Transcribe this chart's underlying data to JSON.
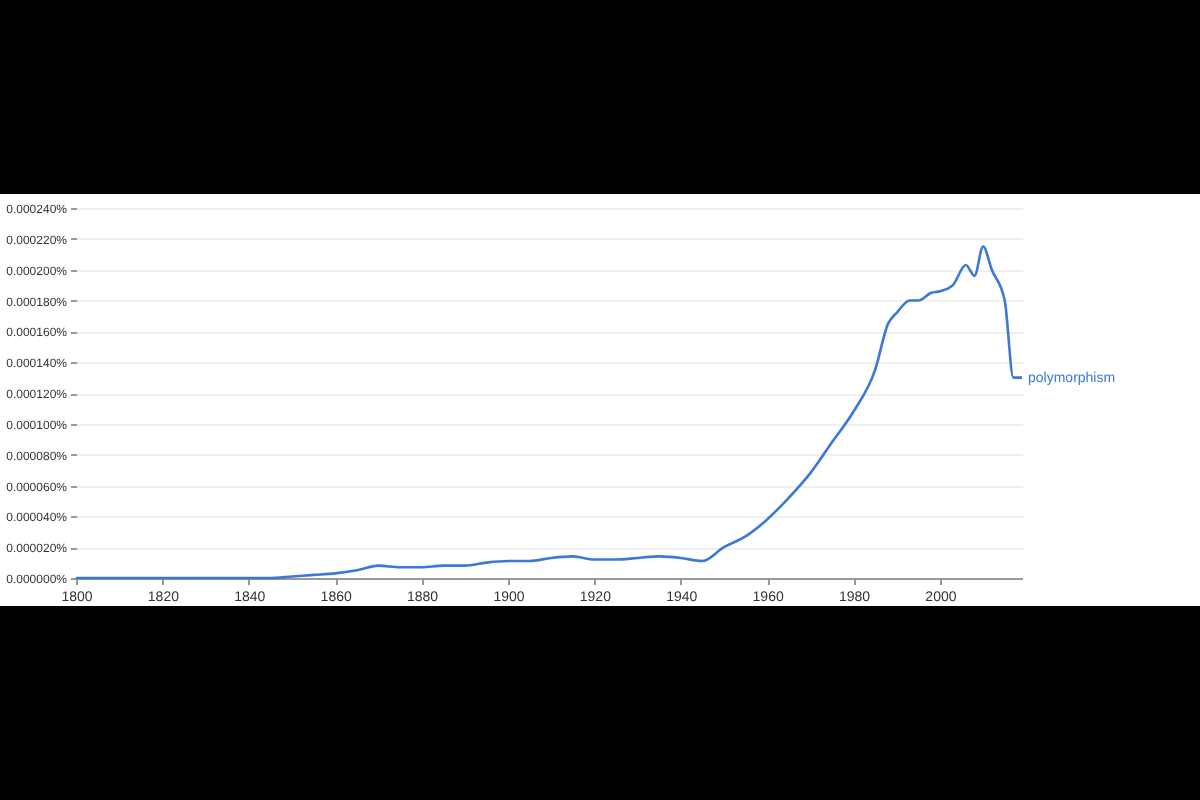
{
  "chart_data": {
    "type": "line",
    "x": [
      1800,
      1810,
      1820,
      1830,
      1840,
      1845,
      1850,
      1855,
      1860,
      1865,
      1870,
      1875,
      1880,
      1885,
      1890,
      1895,
      1900,
      1905,
      1910,
      1915,
      1920,
      1925,
      1930,
      1935,
      1940,
      1945,
      1950,
      1955,
      1960,
      1965,
      1970,
      1975,
      1980,
      1985,
      1988,
      1990,
      1993,
      1995,
      1998,
      2000,
      2003,
      2006,
      2008,
      2010,
      2012,
      2015,
      2017,
      2019
    ],
    "series": [
      {
        "name": "polymorphism",
        "color": "#3b78d8",
        "values": [
          0,
          0,
          0,
          0,
          0,
          0,
          1e-06,
          2e-06,
          3e-06,
          5e-06,
          8e-06,
          7e-06,
          7e-06,
          8e-06,
          8e-06,
          1e-05,
          1.1e-05,
          1.1e-05,
          1.3e-05,
          1.4e-05,
          1.2e-05,
          1.2e-05,
          1.3e-05,
          1.4e-05,
          1.3e-05,
          1.1e-05,
          2e-05,
          2.7e-05,
          3.8e-05,
          5.2e-05,
          6.8e-05,
          8.8e-05,
          0.000108,
          0.000135,
          0.000165,
          0.000172,
          0.00018,
          0.00018,
          0.000185,
          0.000186,
          0.00019,
          0.000203,
          0.000196,
          0.000215,
          0.0002,
          0.00018,
          0.00013,
          0.00013
        ]
      }
    ],
    "xlim": [
      1800,
      2019
    ],
    "xticks": [
      1800,
      1820,
      1840,
      1860,
      1880,
      1900,
      1920,
      1940,
      1960,
      1980,
      2000
    ],
    "ylim": [
      0,
      0.00024
    ],
    "yticks": [
      {
        "value": 0,
        "label": "0.000000%"
      },
      {
        "value": 2e-05,
        "label": "0.000020%"
      },
      {
        "value": 4e-05,
        "label": "0.000040%"
      },
      {
        "value": 6e-05,
        "label": "0.000060%"
      },
      {
        "value": 8e-05,
        "label": "0.000080%"
      },
      {
        "value": 0.0001,
        "label": "0.000100%"
      },
      {
        "value": 0.00012,
        "label": "0.000120%"
      },
      {
        "value": 0.00014,
        "label": "0.000140%"
      },
      {
        "value": 0.00016,
        "label": "0.000160%"
      },
      {
        "value": 0.00018,
        "label": "0.000180%"
      },
      {
        "value": 0.0002,
        "label": "0.000200%"
      },
      {
        "value": 0.00022,
        "label": "0.000220%"
      },
      {
        "value": 0.00024,
        "label": "0.000240%"
      }
    ],
    "grid": "y",
    "line_style": "solid"
  }
}
